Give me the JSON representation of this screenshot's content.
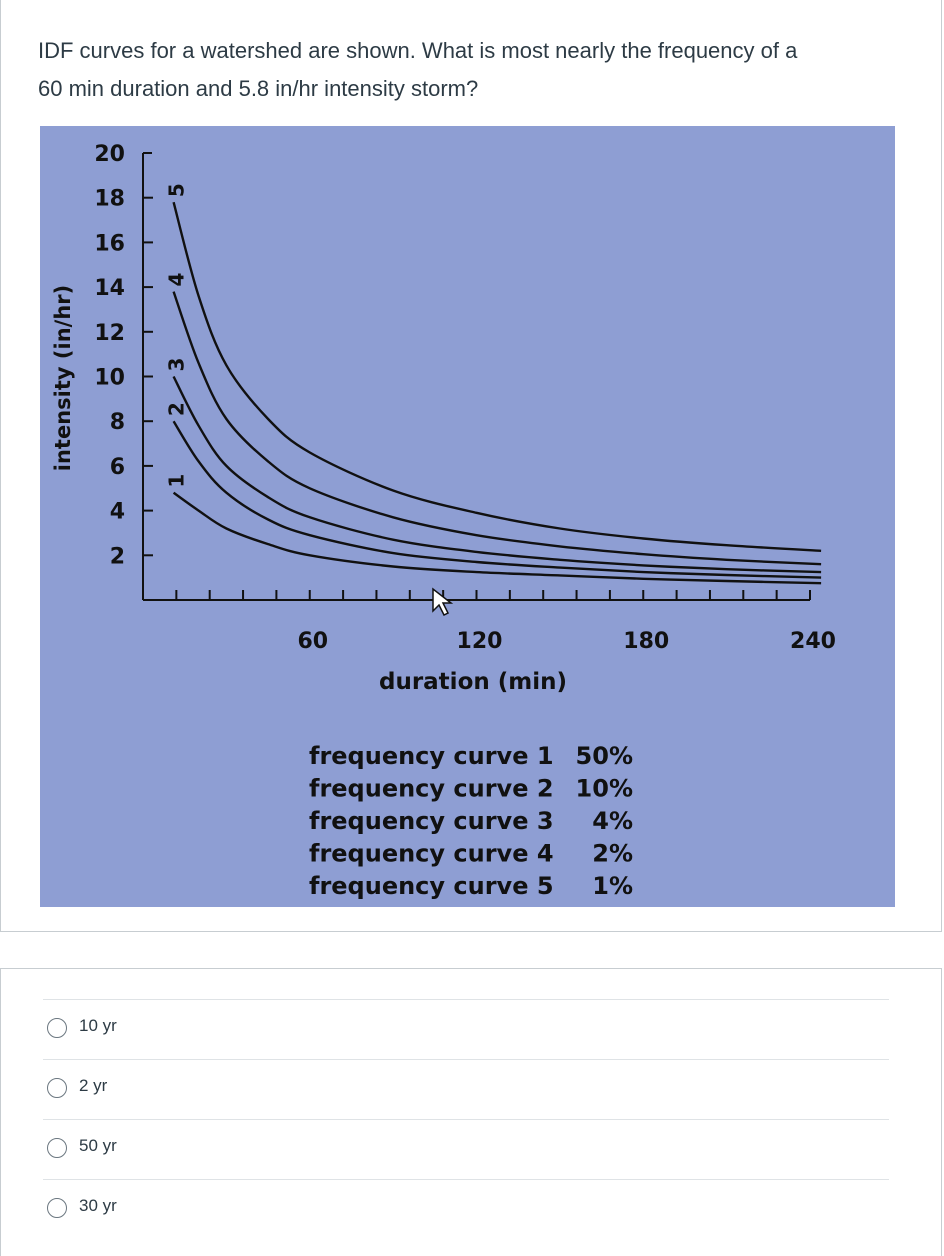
{
  "question": {
    "line1": "IDF curves for a watershed are shown. What is most nearly the frequency of a",
    "line2": "60 min duration and 5.8 in/hr intensity storm?"
  },
  "chart_data": {
    "type": "line",
    "xlabel": "duration (min)",
    "ylabel": "intensity (in/hr)",
    "xlim": [
      0,
      240
    ],
    "ylim": [
      0,
      20
    ],
    "x_ticks": [
      60,
      120,
      180,
      240
    ],
    "y_ticks": [
      2,
      4,
      6,
      8,
      10,
      12,
      14,
      16,
      18,
      20
    ],
    "x": [
      11,
      20,
      30,
      45,
      60,
      90,
      120,
      150,
      180,
      210,
      244
    ],
    "series": [
      {
        "name": "1",
        "values": [
          4.8,
          4.0,
          3.2,
          2.5,
          2.0,
          1.5,
          1.25,
          1.1,
          0.95,
          0.85,
          0.75
        ]
      },
      {
        "name": "2",
        "values": [
          8.0,
          6.2,
          4.8,
          3.6,
          2.9,
          2.1,
          1.7,
          1.45,
          1.25,
          1.12,
          1.0
        ]
      },
      {
        "name": "3",
        "values": [
          10.0,
          7.8,
          6.0,
          4.6,
          3.7,
          2.7,
          2.15,
          1.8,
          1.55,
          1.38,
          1.25
        ]
      },
      {
        "name": "4",
        "values": [
          13.8,
          10.6,
          8.1,
          6.2,
          5.0,
          3.7,
          2.9,
          2.4,
          2.05,
          1.8,
          1.6
        ]
      },
      {
        "name": "5",
        "values": [
          17.8,
          13.6,
          10.5,
          8.1,
          6.6,
          4.9,
          3.9,
          3.2,
          2.75,
          2.45,
          2.2
        ]
      }
    ],
    "legend": {
      "rows": [
        {
          "name": "frequency curve 1",
          "value": "50%"
        },
        {
          "name": "frequency curve 2",
          "value": "10%"
        },
        {
          "name": "frequency curve 3",
          "value": "4%"
        },
        {
          "name": "frequency curve 4",
          "value": "2%"
        },
        {
          "name": "frequency curve 5",
          "value": "1%"
        }
      ]
    }
  },
  "answers": [
    {
      "label": "10 yr"
    },
    {
      "label": "2 yr"
    },
    {
      "label": "50 yr"
    },
    {
      "label": "30 yr"
    }
  ],
  "colors": {
    "figure_bg": "#8e9ed3",
    "ink": "#111111",
    "text": "#2d3b45"
  }
}
